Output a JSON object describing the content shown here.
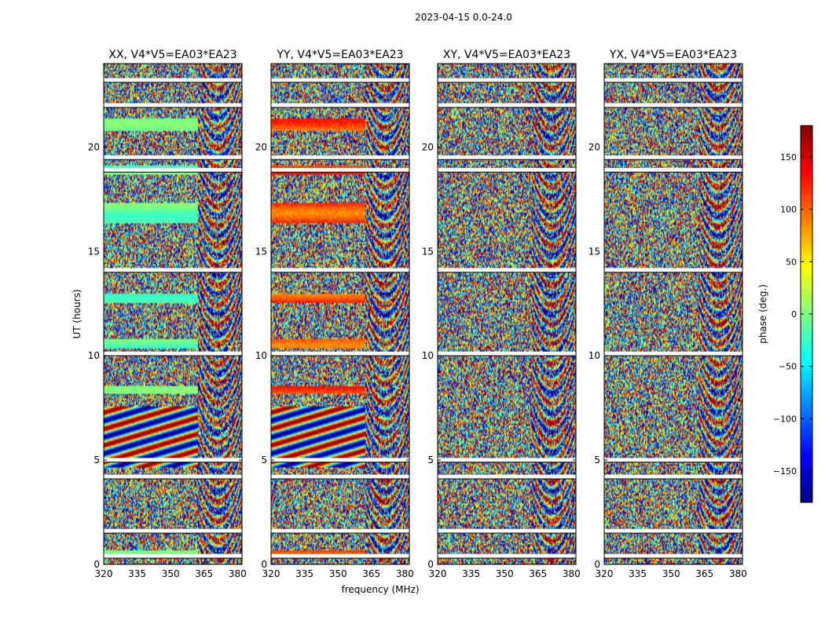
{
  "chart_data": {
    "type": "heatmap",
    "suptitle": "2023-04-15 0.0-24.0",
    "xlabel": "frequency (MHz)",
    "ylabel": "UT (hours)",
    "xlim": [
      320,
      382
    ],
    "ylim": [
      0,
      24
    ],
    "xticks": [
      320,
      335,
      350,
      365,
      380
    ],
    "yticks": [
      0,
      5,
      10,
      15,
      20
    ],
    "panels": [
      {
        "title": "XX, V4*V5=EA03*EA23",
        "product": "XX"
      },
      {
        "title": "YY, V4*V5=EA03*EA23",
        "product": "YY"
      },
      {
        "title": "XY, V4*V5=EA03*EA23",
        "product": "XY"
      },
      {
        "title": "YX, V4*V5=EA03*EA23",
        "product": "YX"
      }
    ],
    "flagged_hours": [
      [
        0.3,
        0.5
      ],
      [
        1.5,
        1.7
      ],
      [
        4.1,
        4.3
      ],
      [
        4.9,
        5.1
      ],
      [
        10.0,
        10.2
      ],
      [
        14.0,
        14.2
      ],
      [
        18.8,
        19.0
      ],
      [
        19.4,
        19.6
      ],
      [
        21.9,
        22.1
      ],
      [
        23.1,
        23.3
      ]
    ],
    "colorbar": {
      "label": "phase (deg.)",
      "range": [
        -180,
        180
      ],
      "ticks": [
        -150,
        -100,
        -50,
        0,
        50,
        100,
        150
      ],
      "tick_labels": [
        "−150",
        "−100",
        "−50",
        "0",
        "50",
        "100",
        "150"
      ],
      "colormap": [
        "#00007f",
        "#0000ff",
        "#007fff",
        "#00ffff",
        "#7fff7f",
        "#ffff00",
        "#ff7f00",
        "#ff0000",
        "#7f0000"
      ]
    }
  }
}
